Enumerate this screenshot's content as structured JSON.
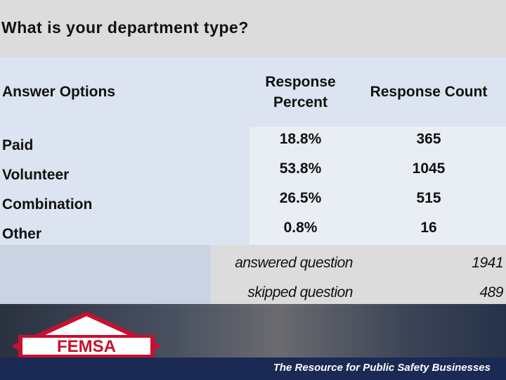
{
  "title": "What is your department type?",
  "table": {
    "headers": [
      "Answer Options",
      "Response Percent",
      "Response Count"
    ],
    "rows": [
      [
        "Paid",
        "18.8%",
        "365"
      ],
      [
        "Volunteer",
        "53.8%",
        "1045"
      ],
      [
        "Combination",
        "26.5%",
        "515"
      ],
      [
        "Other",
        "0.8%",
        "16"
      ]
    ],
    "summary": [
      [
        "answered question",
        "1941"
      ],
      [
        "skipped question",
        "489"
      ]
    ]
  },
  "footer": {
    "logo": "FEMSA",
    "tagline": "The Resource for Public Safety Businesses"
  }
}
